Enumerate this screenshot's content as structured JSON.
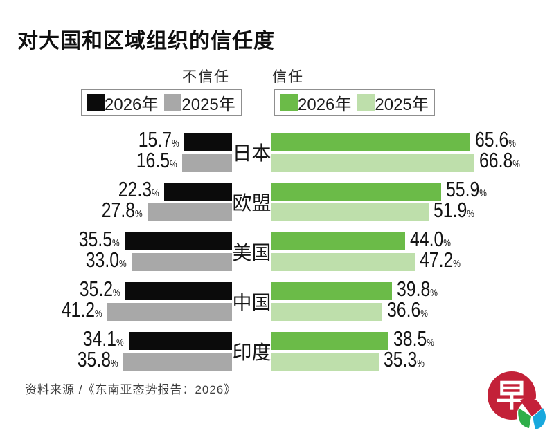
{
  "title": "对大国和区域组织的信任度",
  "legend": {
    "distrust_label": "不信任",
    "trust_label": "信任",
    "distrust_items": [
      {
        "id": "distrust-2026",
        "label": "2026年",
        "color": "#0b0b0b"
      },
      {
        "id": "distrust-2025",
        "label": "2025年",
        "color": "#a8a8a8"
      }
    ],
    "trust_items": [
      {
        "id": "trust-2026",
        "label": "2026年",
        "color": "#6bbb48"
      },
      {
        "id": "trust-2025",
        "label": "2025年",
        "color": "#bedfab"
      }
    ]
  },
  "chart_data": {
    "type": "bar",
    "orientation": "horizontal",
    "unit": "%",
    "value_suffix": "%",
    "categories": [
      "日本",
      "欧盟",
      "美国",
      "中国",
      "印度"
    ],
    "series": [
      {
        "id": "distrust-2026",
        "name": "不信任 2026年",
        "group": "不信任",
        "year": "2026年",
        "color": "#0b0b0b",
        "values": [
          15.7,
          22.3,
          35.5,
          35.2,
          34.1
        ]
      },
      {
        "id": "distrust-2025",
        "name": "不信任 2025年",
        "group": "不信任",
        "year": "2025年",
        "color": "#a8a8a8",
        "values": [
          16.5,
          27.8,
          33.0,
          41.2,
          35.8
        ]
      },
      {
        "id": "trust-2026",
        "name": "信任 2026年",
        "group": "信任",
        "year": "2026年",
        "color": "#6bbb48",
        "values": [
          65.6,
          55.9,
          44.0,
          39.8,
          38.5
        ]
      },
      {
        "id": "trust-2025",
        "name": "信任 2025年",
        "group": "信任",
        "year": "2025年",
        "color": "#bedfab",
        "values": [
          66.8,
          51.9,
          47.2,
          36.6,
          35.3
        ]
      }
    ],
    "xlim": [
      0,
      70
    ],
    "grid": false,
    "legend_position": "top",
    "value_labels": "outside-ends"
  },
  "footer": {
    "source": "资料来源 /《东南亚态势报告：2026》"
  },
  "logo": {
    "character": "早",
    "colors": {
      "circle": "#c32138",
      "character_color": "#ffffff",
      "small_circle": "#ffffff",
      "petal_red": "#c4203a",
      "petal_green": "#2fae49",
      "petal_blue": "#19a8dd"
    }
  }
}
